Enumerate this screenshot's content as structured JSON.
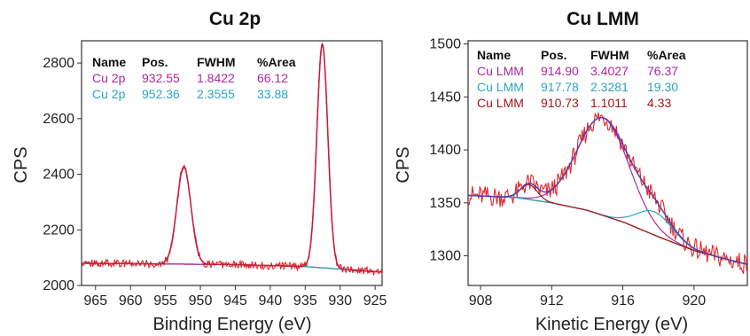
{
  "chart_data": [
    {
      "type": "line",
      "title": "Cu 2p",
      "xlabel": "Binding Energy (eV)",
      "ylabel": "CPS",
      "xlim": [
        967,
        924
      ],
      "ylim": [
        2000,
        2880
      ],
      "x_reversed": true,
      "x_ticks": [
        965,
        960,
        955,
        950,
        945,
        940,
        935,
        930,
        925
      ],
      "y_ticks": [
        2000,
        2200,
        2400,
        2600,
        2800
      ],
      "grid": false,
      "colors": {
        "raw": "#e0262a",
        "envelope": "#c81e3c",
        "background": "#7a4a2a",
        "comp1": "#b0279e",
        "comp2": "#2aa7c2"
      },
      "background_line": {
        "x": [
          967,
          945,
          935,
          924
        ],
        "y": [
          2080,
          2075,
          2068,
          2048
        ]
      },
      "components": [
        {
          "name": "Cu 2p",
          "pos": "932.55",
          "fwhm": "1.8422",
          "area": "66.12",
          "center": 932.55,
          "width": 1.8422,
          "height": 805,
          "color": "#b0279e"
        },
        {
          "name": "Cu 2p",
          "pos": "952.36",
          "fwhm": "2.3555",
          "area": "33.88",
          "center": 952.36,
          "width": 2.3555,
          "height": 350,
          "color": "#2aa7c2"
        }
      ],
      "table": {
        "headers": [
          "Name",
          "Pos.",
          "FWHM",
          "%Area"
        ],
        "rows": [
          [
            "Cu 2p",
            "932.55",
            "1.8422",
            "66.12"
          ],
          [
            "Cu 2p",
            "952.36",
            "2.3555",
            "33.88"
          ]
        ],
        "row_colors": [
          "#b0279e",
          "#2aa7c2"
        ]
      }
    },
    {
      "type": "line",
      "title": "Cu LMM",
      "xlabel": "Kinetic Energy (eV)",
      "ylabel": "CPS",
      "xlim": [
        907.3,
        923
      ],
      "ylim": [
        1272,
        1503
      ],
      "x_reversed": false,
      "x_ticks": [
        908,
        912,
        916,
        920
      ],
      "y_ticks": [
        1300,
        1350,
        1400,
        1450,
        1500
      ],
      "grid": false,
      "colors": {
        "raw": "#e0262a",
        "envelope": "#5a3fa8",
        "background": "#7a4a2a",
        "comp1": "#b0279e",
        "comp2": "#2aa7c2",
        "comp3": "#a6141c"
      },
      "background_line": {
        "x": [
          907.3,
          910,
          912,
          914,
          916,
          918,
          920,
          922,
          923
        ],
        "y": [
          1357,
          1355,
          1350,
          1343,
          1332,
          1318,
          1305,
          1296,
          1292
        ]
      },
      "components": [
        {
          "name": "Cu LMM",
          "pos": "914.90",
          "fwhm": "3.4027",
          "area": "76.37",
          "center": 914.9,
          "width": 3.4027,
          "height": 92,
          "color": "#b0279e"
        },
        {
          "name": "Cu LMM",
          "pos": "917.78",
          "fwhm": "2.3281",
          "area": "19.30",
          "center": 917.78,
          "width": 2.3281,
          "height": 22,
          "color": "#2aa7c2"
        },
        {
          "name": "Cu LMM",
          "pos": "910.73",
          "fwhm": "1.1011",
          "area": "4.33",
          "center": 910.73,
          "width": 1.1011,
          "height": 14,
          "color": "#a6141c"
        }
      ],
      "table": {
        "headers": [
          "Name",
          "Pos.",
          "FWHM",
          "%Area"
        ],
        "rows": [
          [
            "Cu LMM",
            "914.90",
            "3.4027",
            "76.37"
          ],
          [
            "Cu LMM",
            "917.78",
            "2.3281",
            "19.30"
          ],
          [
            "Cu LMM",
            "910.73",
            "1.1011",
            "4.33"
          ]
        ],
        "row_colors": [
          "#b0279e",
          "#2aa7c2",
          "#a6141c"
        ]
      }
    }
  ]
}
